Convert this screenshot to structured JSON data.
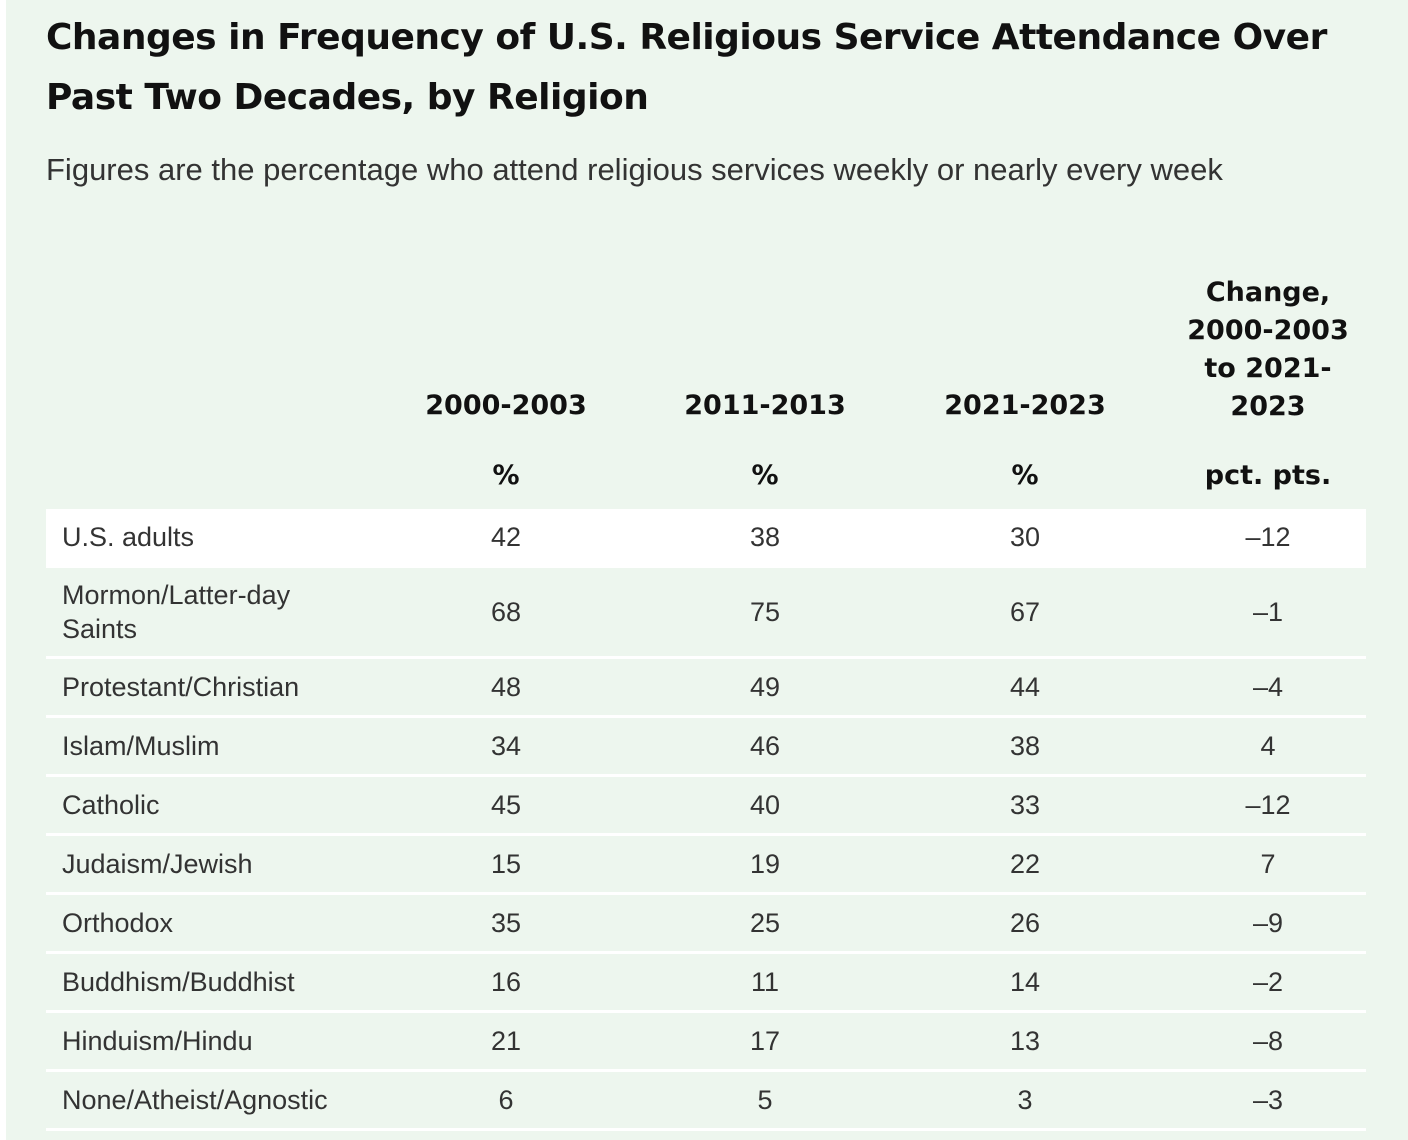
{
  "title": "Changes in Frequency of U.S. Religious Service Attendance Over Past Two Decades, by Religion",
  "subtitle": "Figures are the percentage who attend religious services weekly or nearly every week",
  "chart_data": {
    "type": "table",
    "columns": [
      {
        "label": "2000-2003",
        "unit": "%"
      },
      {
        "label": "2011-2013",
        "unit": "%"
      },
      {
        "label": "2021-2023",
        "unit": "%"
      },
      {
        "label": "Change, 2000-2003 to 2021-2023",
        "unit": "pct. pts."
      }
    ],
    "rows": [
      {
        "label": "U.S. adults",
        "values": [
          "42",
          "38",
          "30",
          "–12"
        ]
      },
      {
        "label": "Mormon/Latter-day Saints",
        "values": [
          "68",
          "75",
          "67",
          "–1"
        ]
      },
      {
        "label": "Protestant/Christian",
        "values": [
          "48",
          "49",
          "44",
          "–4"
        ]
      },
      {
        "label": "Islam/Muslim",
        "values": [
          "34",
          "46",
          "38",
          "4"
        ]
      },
      {
        "label": "Catholic",
        "values": [
          "45",
          "40",
          "33",
          "–12"
        ]
      },
      {
        "label": "Judaism/Jewish",
        "values": [
          "15",
          "19",
          "22",
          "7"
        ]
      },
      {
        "label": "Orthodox",
        "values": [
          "35",
          "25",
          "26",
          "–9"
        ]
      },
      {
        "label": "Buddhism/Buddhist",
        "values": [
          "16",
          "11",
          "14",
          "–2"
        ]
      },
      {
        "label": "Hinduism/Hindu",
        "values": [
          "21",
          "17",
          "13",
          "–8"
        ]
      },
      {
        "label": "None/Atheist/Agnostic",
        "values": [
          "6",
          "5",
          "3",
          "–3"
        ]
      }
    ],
    "highlight_row": "U.S. adults",
    "colors": {
      "background": "#edf6ee",
      "highlight_row": "#ffffff",
      "row_divider": "#ffffff"
    }
  }
}
